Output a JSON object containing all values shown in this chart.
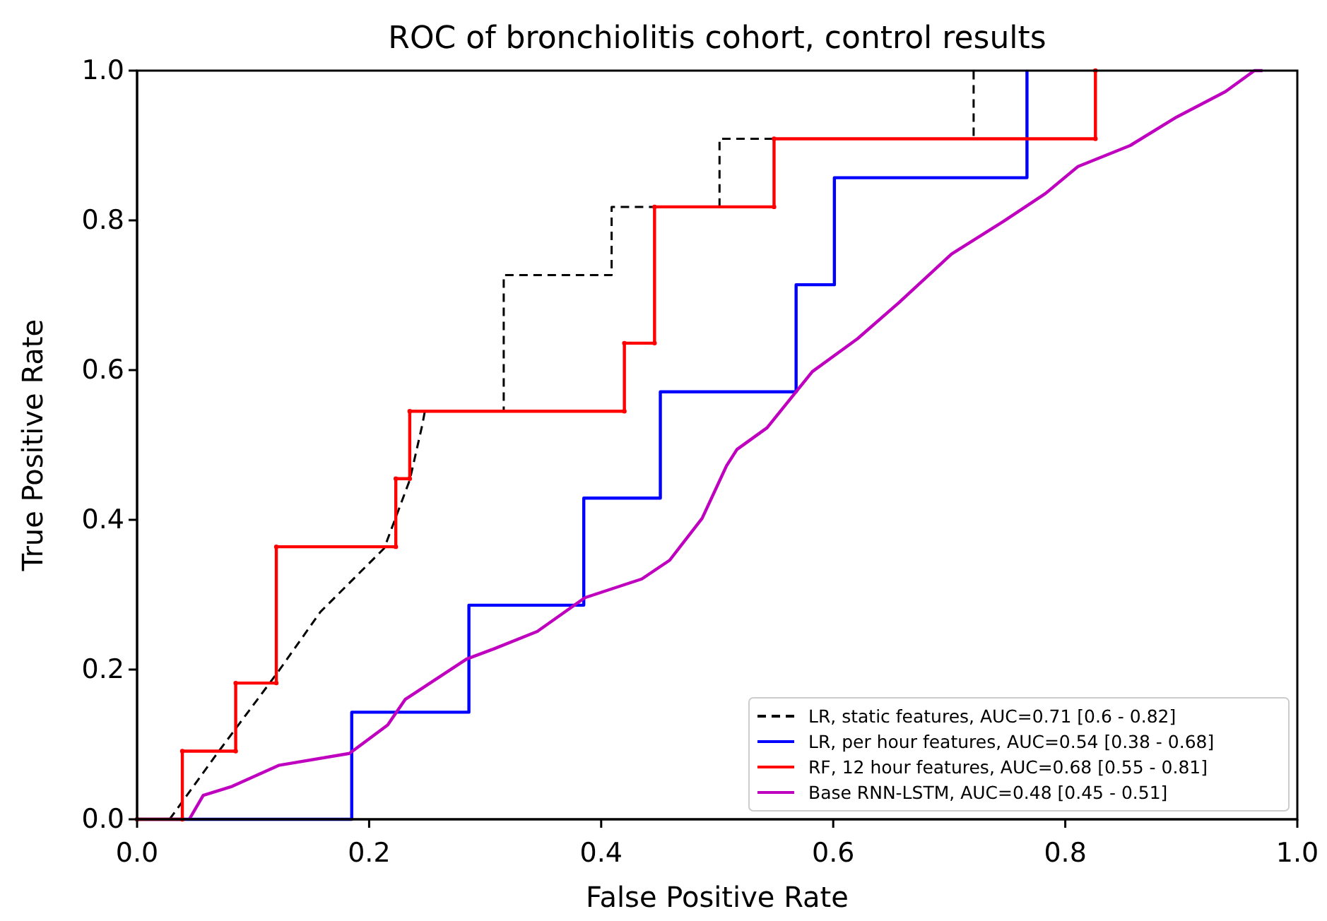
{
  "chart_data": {
    "type": "line",
    "title": "ROC of bronchiolitis cohort, control results",
    "xlabel": "False Positive Rate",
    "ylabel": "True Positive Rate",
    "xlim": [
      0,
      1
    ],
    "ylim": [
      0,
      1
    ],
    "xticks": [
      {
        "value": 0,
        "label": "0.0"
      },
      {
        "value": 0.2,
        "label": "0.2"
      },
      {
        "value": 0.4,
        "label": "0.4"
      },
      {
        "value": 0.6,
        "label": "0.6"
      },
      {
        "value": 0.8,
        "label": "0.8"
      },
      {
        "value": 1,
        "label": "1.0"
      }
    ],
    "yticks": [
      {
        "value": 0,
        "label": "0.0"
      },
      {
        "value": 0.2,
        "label": "0.2"
      },
      {
        "value": 0.4,
        "label": "0.4"
      },
      {
        "value": 0.6,
        "label": "0.6"
      },
      {
        "value": 0.8,
        "label": "0.8"
      },
      {
        "value": 1,
        "label": "1.0"
      }
    ],
    "grid": false,
    "legend": "bottom right",
    "marker": "none",
    "series": [
      {
        "name": "LR, static features, AUC=0.71 [0.6 - 0.82]",
        "color": "#000000",
        "line_style": "dashed",
        "x": [
          0.028,
          0.07,
          0.122,
          0.158,
          0.213,
          0.235,
          0.246,
          0.248,
          0.316,
          0.316,
          0.409,
          0.409,
          0.502,
          0.502,
          0.721,
          0.721
        ],
        "values": [
          0,
          0.09,
          0.198,
          0.277,
          0.362,
          0.453,
          0.528,
          0.545,
          0.545,
          0.727,
          0.727,
          0.818,
          0.818,
          0.909,
          0.909,
          1.0
        ]
      },
      {
        "name": "LR, per hour features, AUC=0.54 [0.38 - 0.68]",
        "color": "#0000ff",
        "line_style": "solid",
        "x": [
          0,
          0.185,
          0.185,
          0.286,
          0.286,
          0.385,
          0.385,
          0.451,
          0.451,
          0.568,
          0.568,
          0.601,
          0.601,
          0.767,
          0.767
        ],
        "values": [
          0,
          0,
          0.143,
          0.143,
          0.286,
          0.286,
          0.429,
          0.429,
          0.571,
          0.571,
          0.714,
          0.714,
          0.857,
          0.857,
          1.0
        ]
      },
      {
        "name": "RF, 12 hour features, AUC=0.68 [0.55 - 0.81]",
        "color": "#ff0000",
        "line_style": "solid",
        "marker": "circle",
        "x": [
          0,
          0.039,
          0.039,
          0.085,
          0.085,
          0.12,
          0.12,
          0.223,
          0.223,
          0.235,
          0.235,
          0.42,
          0.42,
          0.446,
          0.446,
          0.549,
          0.549,
          0.826,
          0.826
        ],
        "values": [
          0,
          0,
          0.091,
          0.091,
          0.182,
          0.182,
          0.364,
          0.364,
          0.455,
          0.455,
          0.545,
          0.545,
          0.636,
          0.636,
          0.818,
          0.818,
          0.909,
          0.909,
          1.0
        ]
      },
      {
        "name": "Base RNN-LSTM, AUC=0.48 [0.45 - 0.51]",
        "color": "#bf00bf",
        "line_style": "solid",
        "x": [
          0.045,
          0.057,
          0.082,
          0.122,
          0.183,
          0.216,
          0.231,
          0.284,
          0.308,
          0.345,
          0.386,
          0.435,
          0.459,
          0.487,
          0.508,
          0.517,
          0.543,
          0.582,
          0.621,
          0.658,
          0.702,
          0.747,
          0.783,
          0.811,
          0.856,
          0.896,
          0.938,
          0.963,
          0.97
        ],
        "values": [
          0,
          0.032,
          0.044,
          0.072,
          0.088,
          0.126,
          0.16,
          0.214,
          0.228,
          0.251,
          0.296,
          0.321,
          0.346,
          0.402,
          0.472,
          0.494,
          0.523,
          0.598,
          0.642,
          0.692,
          0.755,
          0.799,
          0.836,
          0.872,
          0.9,
          0.938,
          0.972,
          1.0,
          1.0
        ]
      }
    ]
  }
}
